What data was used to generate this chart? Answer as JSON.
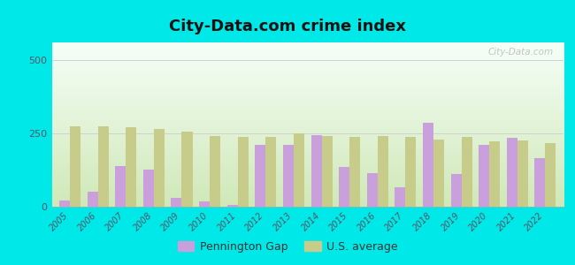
{
  "title": "City-Data.com crime index",
  "years": [
    2005,
    2006,
    2007,
    2008,
    2009,
    2010,
    2011,
    2012,
    2013,
    2014,
    2015,
    2016,
    2017,
    2018,
    2019,
    2020,
    2021,
    2022
  ],
  "pennington_gap": [
    20,
    50,
    140,
    125,
    30,
    18,
    5,
    210,
    210,
    245,
    135,
    115,
    65,
    285,
    110,
    210,
    235,
    165
  ],
  "us_average": [
    275,
    275,
    270,
    265,
    255,
    242,
    238,
    238,
    250,
    242,
    238,
    242,
    238,
    228,
    238,
    222,
    225,
    218
  ],
  "pennington_color": "#c9a0dc",
  "us_avg_color": "#c8cc8a",
  "grad_top": "#f5fff8",
  "grad_bottom": "#d0e8b8",
  "outer_bg": "#00e8e8",
  "ylim": [
    0,
    560
  ],
  "yticks": [
    0,
    250,
    500
  ],
  "bar_width": 0.38,
  "legend_pennington": "Pennington Gap",
  "legend_us": "U.S. average",
  "watermark": "City-Data.com"
}
